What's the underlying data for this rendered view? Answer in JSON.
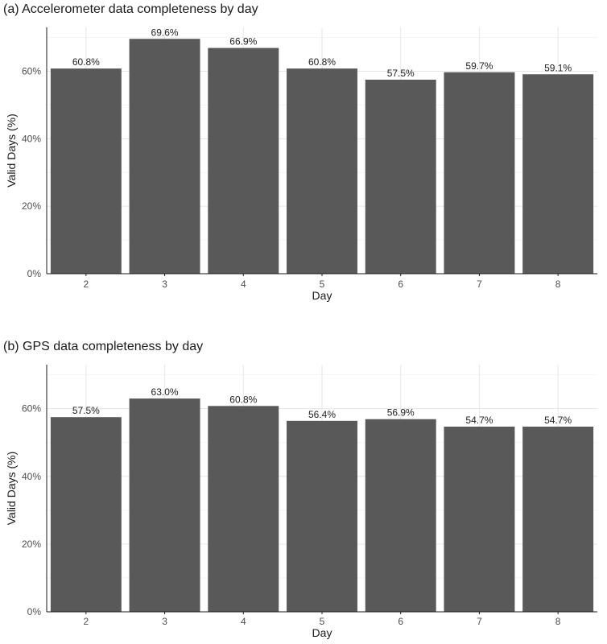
{
  "chart_data": [
    {
      "type": "bar",
      "title": "(a) Accelerometer data completeness by day",
      "xlabel": "Day",
      "ylabel": "Valid Days (%)",
      "categories": [
        "2",
        "3",
        "4",
        "5",
        "6",
        "7",
        "8"
      ],
      "values": [
        60.8,
        69.6,
        66.9,
        60.8,
        57.5,
        59.7,
        59.1
      ],
      "value_labels": [
        "60.8%",
        "69.6%",
        "66.9%",
        "60.8%",
        "57.5%",
        "59.7%",
        "59.1%"
      ],
      "ylim": [
        0,
        73
      ],
      "yticks": [
        0,
        20,
        40,
        60
      ],
      "ytick_labels": [
        "0%",
        "20%",
        "40%",
        "60%"
      ],
      "bar_color": "#595959",
      "grid": true
    },
    {
      "type": "bar",
      "title": "(b) GPS data completeness by day",
      "xlabel": "Day",
      "ylabel": "Valid Days (%)",
      "categories": [
        "2",
        "3",
        "4",
        "5",
        "6",
        "7",
        "8"
      ],
      "values": [
        57.5,
        63.0,
        60.8,
        56.4,
        56.9,
        54.7,
        54.7
      ],
      "value_labels": [
        "57.5%",
        "63.0%",
        "60.8%",
        "56.4%",
        "56.9%",
        "54.7%",
        "54.7%"
      ],
      "ylim": [
        0,
        73
      ],
      "yticks": [
        0,
        20,
        40,
        60
      ],
      "ytick_labels": [
        "0%",
        "20%",
        "40%",
        "60%"
      ],
      "bar_color": "#595959",
      "grid": true
    }
  ]
}
